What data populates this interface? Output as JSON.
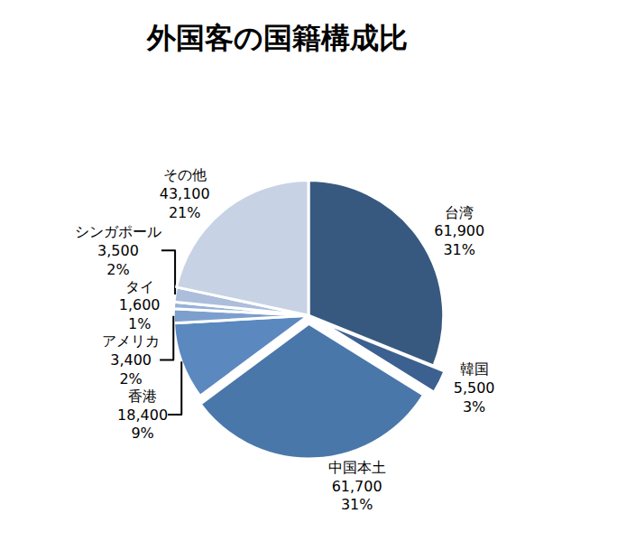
{
  "chart_data": {
    "type": "pie",
    "title": "外国客の国籍構成比",
    "categories": [
      "台湾",
      "韓国",
      "中国本土",
      "香港",
      "アメリカ",
      "タイ",
      "シンガポール",
      "その他"
    ],
    "values": [
      61900,
      5500,
      61700,
      18400,
      3400,
      1600,
      3500,
      43100
    ],
    "value_labels": [
      "61,900",
      "5,500",
      "61,700",
      "18,400",
      "3,400",
      "1,600",
      "3,500",
      "43,100"
    ],
    "percents": [
      31,
      3,
      31,
      9,
      2,
      1,
      2,
      21
    ],
    "percent_labels": [
      "31%",
      "3%",
      "31%",
      "9%",
      "2%",
      "1%",
      "2%",
      "21%"
    ],
    "colors": [
      "#38597f",
      "#3c6090",
      "#4a77aa",
      "#5b88bf",
      "#7d9fcd",
      "#97b1d7",
      "#acbedc",
      "#c8d2e5"
    ],
    "data_labels": true
  }
}
